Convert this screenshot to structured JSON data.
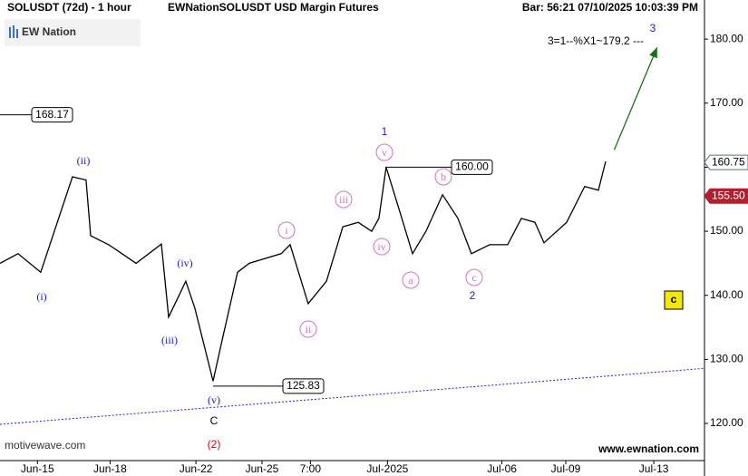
{
  "chart_data": {
    "type": "line",
    "title": "SOLUSDT (72d) - 1 hour",
    "subtitle": "EWNationSOLUSDT USD Margin Futures",
    "bar_info": "Bar: 56:21  07/10/2025 10:03:39 PM",
    "logo": "EW Nation",
    "target_note": "3=1--%X1~179.2 ---",
    "watermark": "motivewave.com",
    "site": "www.ewnation.com",
    "badge": "c",
    "xlim": [
      -1.7,
      30.3
    ],
    "ylim": [
      114.2,
      186.1
    ],
    "xticks": [
      {
        "value": 0,
        "label": "Jun-15"
      },
      {
        "value": 3.3,
        "label": "Jun-18"
      },
      {
        "value": 7.2,
        "label": "Jun-22"
      },
      {
        "value": 10.2,
        "label": "Jun-25"
      },
      {
        "value": 12.4,
        "label": "7:00"
      },
      {
        "value": 15.9,
        "label": "Jul-2025"
      },
      {
        "value": 21.1,
        "label": "Jul-06"
      },
      {
        "value": 24,
        "label": "Jul-09"
      },
      {
        "value": 28,
        "label": "Jul-13"
      }
    ],
    "yticks": [
      {
        "value": 120,
        "label": "120.00"
      },
      {
        "value": 130,
        "label": "130.00"
      },
      {
        "value": 140,
        "label": "140.00"
      },
      {
        "value": 150,
        "label": "150.00"
      },
      {
        "value": 160,
        "label": "160.00"
      },
      {
        "value": 170,
        "label": "170.00"
      },
      {
        "value": 180,
        "label": "180.00"
      }
    ],
    "series": [
      {
        "color": "#000000",
        "x": [
          -1.7,
          -0.88,
          0.15,
          1.59,
          2.21,
          2.42,
          3.24,
          4.48,
          5.63,
          5.96,
          6.74,
          7.15,
          7.98,
          8.39,
          9.09,
          9.62,
          11.07,
          11.48,
          12.3,
          13.13,
          13.87,
          14.57,
          15.18,
          15.51,
          15.84,
          16.42,
          17.04,
          17.65,
          18.4,
          19.1,
          19.71,
          20.54,
          21.36,
          21.98,
          22.6,
          23.01,
          24.04,
          24.86,
          25.48,
          25.81
        ],
        "values": [
          145,
          146.5,
          143.6,
          158.5,
          158,
          149.3,
          147.9,
          145,
          148,
          136.6,
          142.2,
          138,
          126.6,
          133,
          143.6,
          145,
          146.5,
          147.9,
          138.7,
          142.2,
          150.7,
          151.4,
          150,
          152,
          160,
          153.5,
          146.5,
          150,
          155.7,
          152,
          146.5,
          147.9,
          147.9,
          152,
          151.4,
          148.2,
          151.4,
          157,
          156.4,
          160.9
        ]
      }
    ],
    "price_tags": [
      {
        "value": 168.17,
        "label": "168.17"
      },
      {
        "value": 160,
        "label": "160.00"
      },
      {
        "value": 125.83,
        "label": "125.83"
      }
    ],
    "axis_tags": [
      {
        "value": 160.75,
        "label": "160.75",
        "color": "#5a6e8c"
      },
      {
        "value": 155.5,
        "label": "155.50",
        "color": "#b02030"
      }
    ],
    "trendline": {
      "x": [
        -1.7,
        30.3
      ],
      "y": [
        119.86,
        128.6
      ],
      "color": "#2020d0"
    },
    "arrow": {
      "x": [
        26.2,
        28.15
      ],
      "y": [
        162.7,
        178.7
      ],
      "color": "#1a6e1a"
    },
    "wave_labels": [
      {
        "text": "(i)",
        "color": "#1a1acc"
      },
      {
        "text": "(ii)",
        "color": "#1a1acc"
      },
      {
        "text": "(iii)",
        "color": "#1a1acc"
      },
      {
        "text": "(iv)",
        "color": "#1a1acc"
      },
      {
        "text": "(v)",
        "color": "#1a1acc"
      },
      {
        "text": "C",
        "color": "#000000"
      },
      {
        "text": "(2)",
        "color": "#e00000"
      },
      {
        "text": "1",
        "color": "#1a1acc"
      },
      {
        "text": "2",
        "color": "#1a1acc"
      },
      {
        "text": "3",
        "color": "#1a1acc"
      },
      {
        "text": "i",
        "color": "#d070d0",
        "circled": true
      },
      {
        "text": "ii",
        "color": "#d070d0",
        "circled": true
      },
      {
        "text": "iii",
        "color": "#d070d0",
        "circled": true
      },
      {
        "text": "iv",
        "color": "#d070d0",
        "circled": true
      },
      {
        "text": "v",
        "color": "#d070d0",
        "circled": true
      },
      {
        "text": "a",
        "color": "#d070d0",
        "circled": true
      },
      {
        "text": "b",
        "color": "#d070d0",
        "circled": true
      },
      {
        "text": "c",
        "color": "#d070d0",
        "circled": true
      }
    ]
  }
}
